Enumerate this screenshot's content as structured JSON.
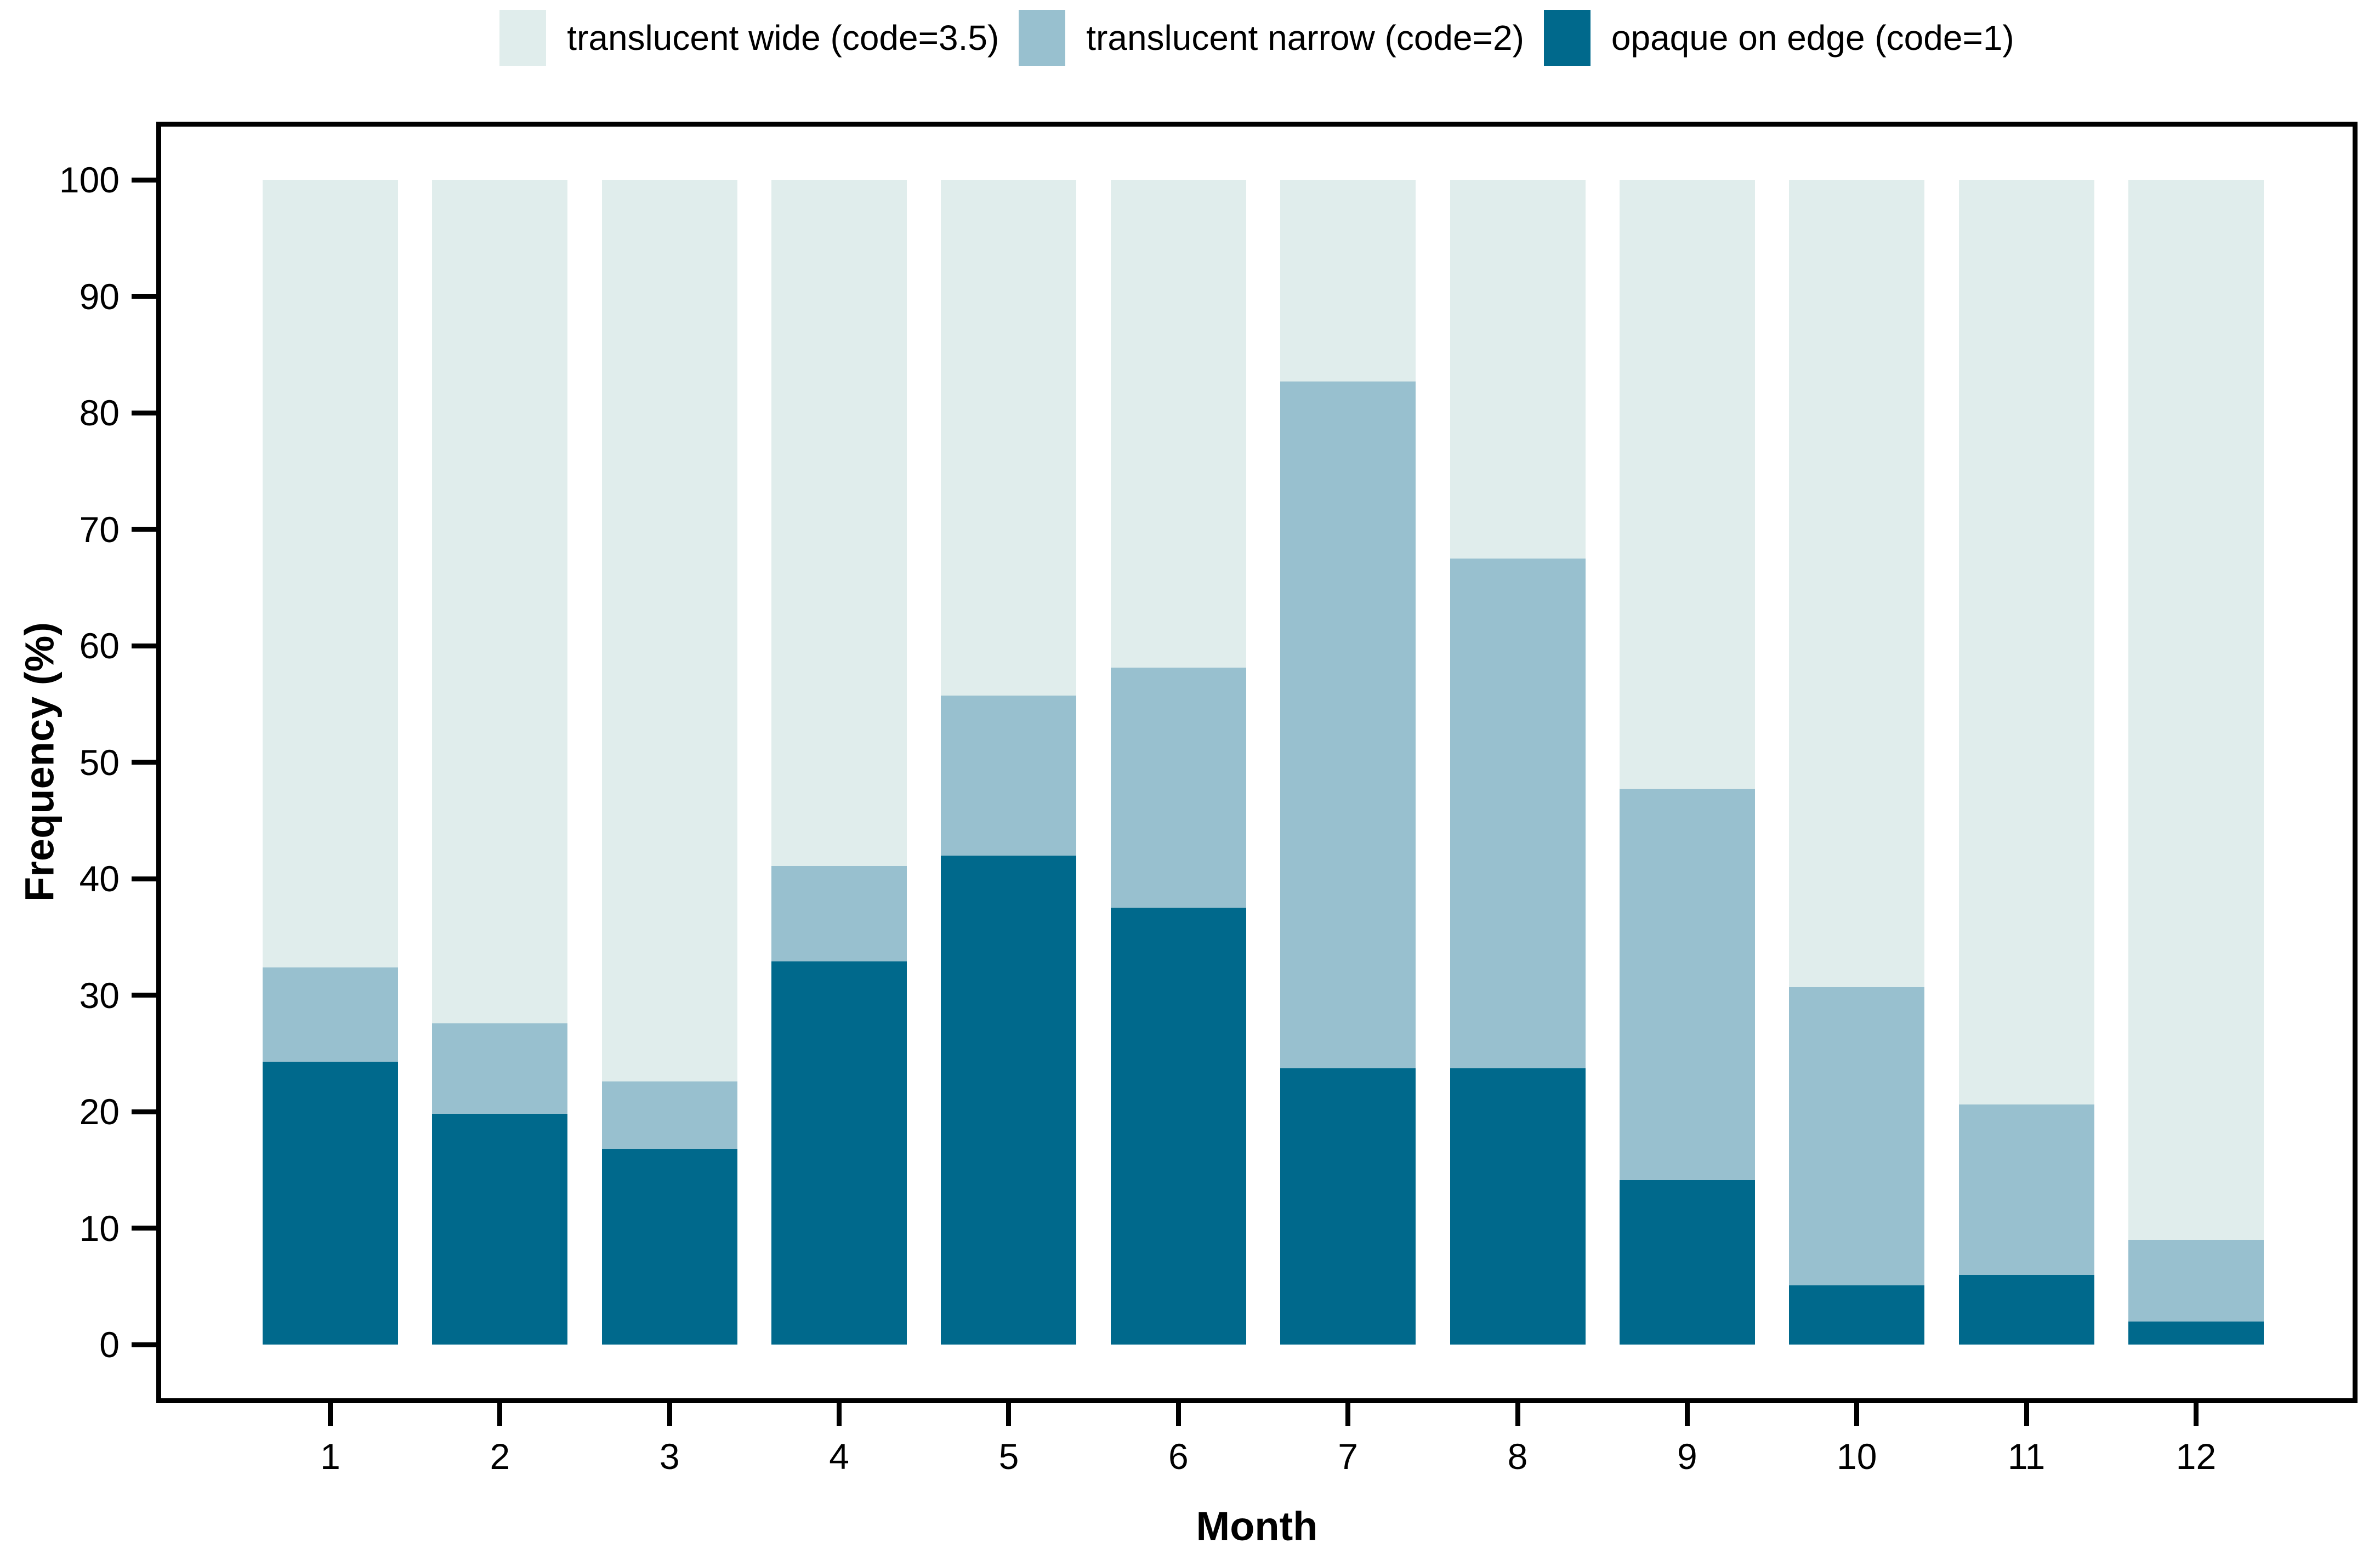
{
  "chart_data": {
    "type": "bar",
    "stacked": true,
    "orientation": "vertical",
    "xlabel": "Month",
    "ylabel": "Frequency (%)",
    "ylim": [
      0,
      100
    ],
    "yticks": [
      0,
      10,
      20,
      30,
      40,
      50,
      60,
      70,
      80,
      90,
      100
    ],
    "grid": false,
    "categories": [
      "1",
      "2",
      "3",
      "4",
      "5",
      "6",
      "7",
      "8",
      "9",
      "10",
      "11",
      "12"
    ],
    "series": [
      {
        "name": "opaque on edge (code=1)",
        "color": "#00698c",
        "values": [
          24.3,
          19.8,
          16.8,
          32.9,
          42.0,
          37.5,
          23.7,
          23.7,
          14.1,
          5.1,
          6.0,
          2.0
        ]
      },
      {
        "name": "translucent narrow (code=2)",
        "color": "#98c0cf",
        "values": [
          8.1,
          7.8,
          5.8,
          8.2,
          13.7,
          20.6,
          59.0,
          43.8,
          33.6,
          25.6,
          14.6,
          7.0
        ]
      },
      {
        "name": "translucent wide (code=3.5)",
        "color": "#e0edec",
        "values": [
          67.6,
          72.4,
          77.4,
          58.9,
          44.3,
          41.9,
          17.3,
          32.5,
          52.3,
          69.3,
          79.4,
          91.0
        ]
      }
    ],
    "legend_position": "top",
    "legend_order": [
      "translucent wide (code=3.5)",
      "translucent narrow (code=2)",
      "opaque on edge (code=1)"
    ]
  },
  "axes": {
    "x_title": "Month",
    "y_title": "Frequency (%)"
  },
  "colors": {
    "axis": "#000000",
    "background": "#ffffff"
  }
}
